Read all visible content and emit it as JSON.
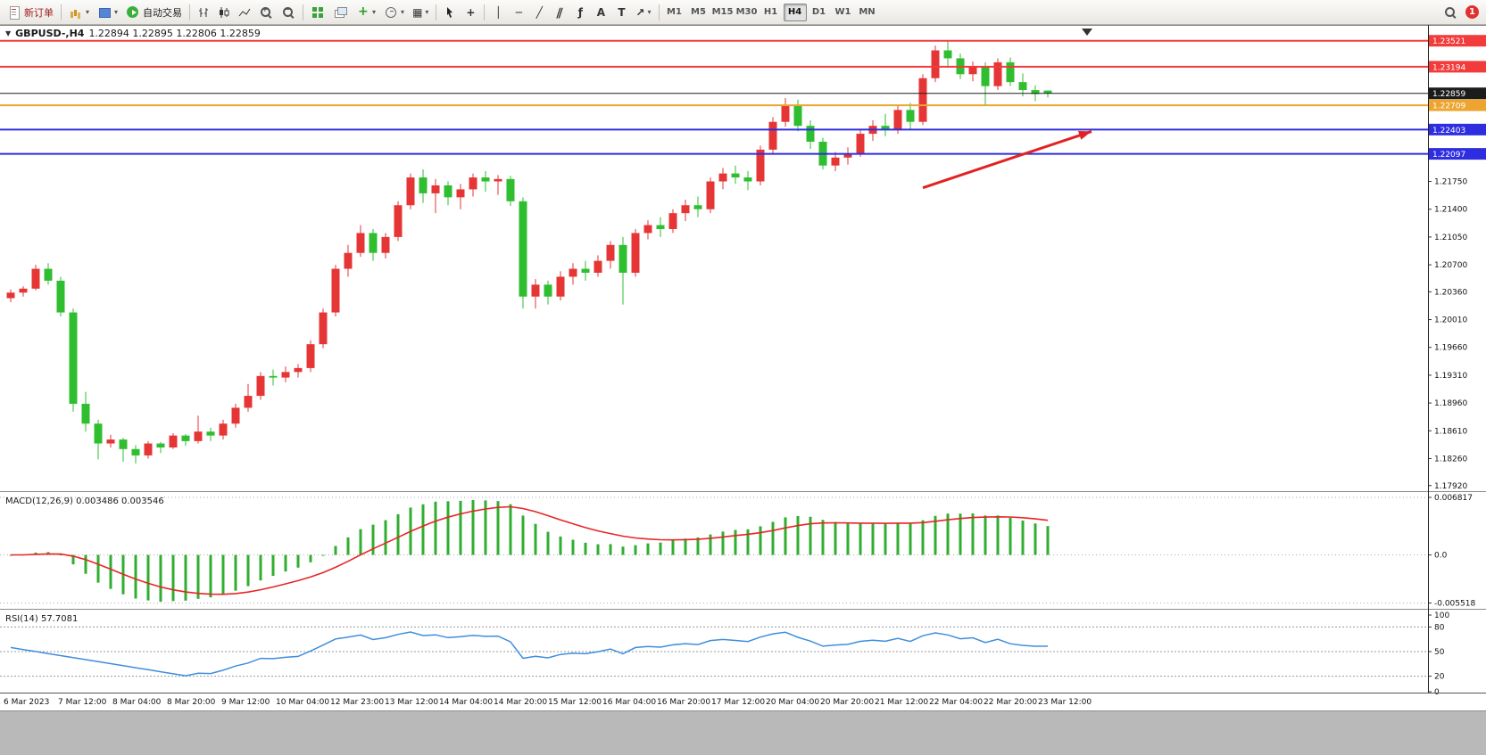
{
  "toolbar": {
    "new_order_label": "新订单",
    "autotrade_label": "自动交易",
    "timeframes": [
      "M1",
      "M5",
      "M15",
      "M30",
      "H1",
      "H4",
      "D1",
      "W1",
      "MN"
    ],
    "active_timeframe": "H4",
    "notification_count": "1"
  },
  "icons": {
    "dropdown": "▾",
    "symbol_dropdown": "▼",
    "vline": "│",
    "hline": "─",
    "trendline": "╱",
    "channel": "∥",
    "fibonacci": "ƒ",
    "text_tool": "A",
    "label_tool": "T",
    "arrow_tool": "↗",
    "templates": "▦",
    "crosshair": "+"
  },
  "header": {
    "symbol": "GBPUSD-,H4",
    "ohlc": "1.22894 1.22895 1.22806 1.22859"
  },
  "indicators": {
    "macd_label": "MACD(12,26,9) 0.003486 0.003546",
    "rsi_label": "RSI(14) 57.7081"
  },
  "chart_data": {
    "type": "candlestick",
    "symbol": "GBPUSD-",
    "timeframe": "H4",
    "price_range": [
      1.1785,
      1.2372
    ],
    "colors": {
      "bull": "#e53535",
      "bear": "#2fbe2f",
      "background": "#ffffff"
    },
    "candles": [
      [
        1.2028,
        1.2039,
        1.2023,
        1.2035
      ],
      [
        1.2035,
        1.2043,
        1.203,
        1.204
      ],
      [
        1.204,
        1.207,
        1.2038,
        1.2065
      ],
      [
        1.2065,
        1.2072,
        1.2045,
        1.205
      ],
      [
        1.205,
        1.2055,
        1.2005,
        1.201
      ],
      [
        1.201,
        1.2015,
        1.1885,
        1.1895
      ],
      [
        1.1895,
        1.191,
        1.186,
        1.187
      ],
      [
        1.187,
        1.1875,
        1.1825,
        1.1845
      ],
      [
        1.1845,
        1.1856,
        1.184,
        1.185
      ],
      [
        1.185,
        1.1852,
        1.1822,
        1.1838
      ],
      [
        1.1838,
        1.1843,
        1.182,
        1.183
      ],
      [
        1.183,
        1.1848,
        1.1826,
        1.1845
      ],
      [
        1.1845,
        1.1847,
        1.1833,
        1.184
      ],
      [
        1.184,
        1.1858,
        1.1838,
        1.1855
      ],
      [
        1.1855,
        1.1857,
        1.1842,
        1.1848
      ],
      [
        1.1848,
        1.188,
        1.1845,
        1.186
      ],
      [
        1.186,
        1.1865,
        1.1848,
        1.1855
      ],
      [
        1.1855,
        1.1875,
        1.185,
        1.187
      ],
      [
        1.187,
        1.1895,
        1.1865,
        1.189
      ],
      [
        1.189,
        1.192,
        1.1885,
        1.1905
      ],
      [
        1.1905,
        1.1935,
        1.19,
        1.193
      ],
      [
        1.193,
        1.1938,
        1.1918,
        1.1928
      ],
      [
        1.1928,
        1.1942,
        1.1922,
        1.1935
      ],
      [
        1.1935,
        1.1945,
        1.1928,
        1.194
      ],
      [
        1.194,
        1.1975,
        1.1935,
        1.197
      ],
      [
        1.197,
        1.2015,
        1.1965,
        1.201
      ],
      [
        1.201,
        1.207,
        1.2005,
        1.2065
      ],
      [
        1.2065,
        1.2095,
        1.2055,
        1.2085
      ],
      [
        1.2085,
        1.212,
        1.208,
        1.211
      ],
      [
        1.211,
        1.2115,
        1.2075,
        1.2085
      ],
      [
        1.2085,
        1.211,
        1.2078,
        1.2105
      ],
      [
        1.2105,
        1.215,
        1.21,
        1.2145
      ],
      [
        1.2145,
        1.2185,
        1.214,
        1.218
      ],
      [
        1.218,
        1.219,
        1.2148,
        1.216
      ],
      [
        1.216,
        1.2178,
        1.2135,
        1.217
      ],
      [
        1.217,
        1.2175,
        1.2145,
        1.2155
      ],
      [
        1.2155,
        1.2172,
        1.214,
        1.2165
      ],
      [
        1.2165,
        1.2185,
        1.2156,
        1.218
      ],
      [
        1.218,
        1.2188,
        1.2162,
        1.2175
      ],
      [
        1.2175,
        1.2183,
        1.2158,
        1.2178
      ],
      [
        1.2178,
        1.2182,
        1.2144,
        1.215
      ],
      [
        1.215,
        1.2155,
        1.2015,
        1.203
      ],
      [
        1.203,
        1.2052,
        1.2015,
        1.2045
      ],
      [
        1.2045,
        1.205,
        1.202,
        1.203
      ],
      [
        1.203,
        1.2062,
        1.2025,
        1.2055
      ],
      [
        1.2055,
        1.2072,
        1.2045,
        1.2065
      ],
      [
        1.2065,
        1.2075,
        1.205,
        1.206
      ],
      [
        1.206,
        1.2082,
        1.2055,
        1.2075
      ],
      [
        1.2075,
        1.21,
        1.2065,
        1.2095
      ],
      [
        1.2095,
        1.2105,
        1.202,
        1.206
      ],
      [
        1.206,
        1.2115,
        1.2055,
        1.211
      ],
      [
        1.211,
        1.2126,
        1.2102,
        1.212
      ],
      [
        1.212,
        1.213,
        1.2105,
        1.2115
      ],
      [
        1.2115,
        1.214,
        1.211,
        1.2135
      ],
      [
        1.2135,
        1.2152,
        1.2125,
        1.2145
      ],
      [
        1.2145,
        1.2156,
        1.213,
        1.214
      ],
      [
        1.214,
        1.218,
        1.2135,
        1.2175
      ],
      [
        1.2175,
        1.2192,
        1.2165,
        1.2185
      ],
      [
        1.2185,
        1.2195,
        1.2172,
        1.218
      ],
      [
        1.218,
        1.2188,
        1.2164,
        1.2175
      ],
      [
        1.2175,
        1.222,
        1.217,
        1.2215
      ],
      [
        1.2215,
        1.2256,
        1.221,
        1.225
      ],
      [
        1.225,
        1.228,
        1.2244,
        1.227
      ],
      [
        1.227,
        1.2278,
        1.2238,
        1.2245
      ],
      [
        1.2245,
        1.2252,
        1.2216,
        1.2225
      ],
      [
        1.2225,
        1.223,
        1.219,
        1.2195
      ],
      [
        1.2195,
        1.2212,
        1.2188,
        1.2205
      ],
      [
        1.2205,
        1.2218,
        1.2196,
        1.221
      ],
      [
        1.221,
        1.224,
        1.2206,
        1.2235
      ],
      [
        1.2235,
        1.2252,
        1.2226,
        1.2245
      ],
      [
        1.2245,
        1.226,
        1.2232,
        1.224
      ],
      [
        1.224,
        1.227,
        1.2235,
        1.2265
      ],
      [
        1.2265,
        1.2274,
        1.224,
        1.225
      ],
      [
        1.225,
        1.231,
        1.2246,
        1.2305
      ],
      [
        1.2305,
        1.2346,
        1.23,
        1.234
      ],
      [
        1.234,
        1.23521,
        1.2318,
        1.233
      ],
      [
        1.233,
        1.2336,
        1.2304,
        1.231
      ],
      [
        1.231,
        1.2326,
        1.2301,
        1.232
      ],
      [
        1.232,
        1.2325,
        1.227,
        1.2295
      ],
      [
        1.2295,
        1.233,
        1.229,
        1.2325
      ],
      [
        1.2325,
        1.2331,
        1.2295,
        1.23
      ],
      [
        1.23,
        1.2311,
        1.2282,
        1.229
      ],
      [
        1.229,
        1.2296,
        1.2276,
        1.2285
      ],
      [
        1.22894,
        1.22895,
        1.22806,
        1.22859
      ]
    ],
    "price_axis_ticks": [
      "1.21750",
      "1.21400",
      "1.21050",
      "1.20700",
      "1.20360",
      "1.20010",
      "1.19660",
      "1.19310",
      "1.18960",
      "1.18610",
      "1.18260",
      "1.17920"
    ],
    "levels": [
      {
        "label": "1.23521",
        "price": 1.23521,
        "color": "#f23b3b",
        "width": 2
      },
      {
        "label": "1.23194",
        "price": 1.23194,
        "color": "#f23b3b",
        "width": 2
      },
      {
        "label": "1.22859",
        "price": 1.22859,
        "color": "#1c1c1c",
        "width": 1,
        "current": true
      },
      {
        "label": "1.22709",
        "price": 1.22709,
        "color": "#eda52f",
        "width": 2
      },
      {
        "label": "1.22403",
        "price": 1.22403,
        "color": "#2e2ee0",
        "width": 2
      },
      {
        "label": "1.22097",
        "price": 1.22097,
        "color": "#2e2ee0",
        "width": 2
      }
    ],
    "arrow": {
      "x1_bar": 73,
      "price1": 1.2167,
      "x2_bar": 86.5,
      "price2": 1.2238,
      "color": "#e22222"
    },
    "time_axis": [
      "6 Mar 2023",
      "7 Mar 12:00",
      "8 Mar 04:00",
      "8 Mar 20:00",
      "9 Mar 12:00",
      "10 Mar 04:00",
      "12 Mar 23:00",
      "13 Mar 12:00",
      "14 Mar 04:00",
      "14 Mar 20:00",
      "15 Mar 12:00",
      "16 Mar 04:00",
      "16 Mar 20:00",
      "17 Mar 12:00",
      "20 Mar 04:00",
      "20 Mar 20:00",
      "21 Mar 12:00",
      "22 Mar 04:00",
      "22 Mar 20:00",
      "23 Mar 12:00"
    ],
    "macd": {
      "name": "MACD",
      "params": "12,26,9",
      "histogram_color": "#2fae2f",
      "signal_color": "#e82525",
      "axis_labels": [
        "0.006817",
        "0.0",
        "-0.005518"
      ],
      "axis_values": [
        0.006817,
        0,
        -0.005518
      ]
    },
    "rsi": {
      "name": "RSI",
      "params": "14",
      "line_color": "#3e8edd",
      "levels": [
        80,
        50,
        20
      ],
      "axis_labels": [
        "100",
        "80",
        "50",
        "20",
        "0"
      ],
      "axis_values": [
        100,
        80,
        50,
        20,
        0
      ]
    }
  }
}
